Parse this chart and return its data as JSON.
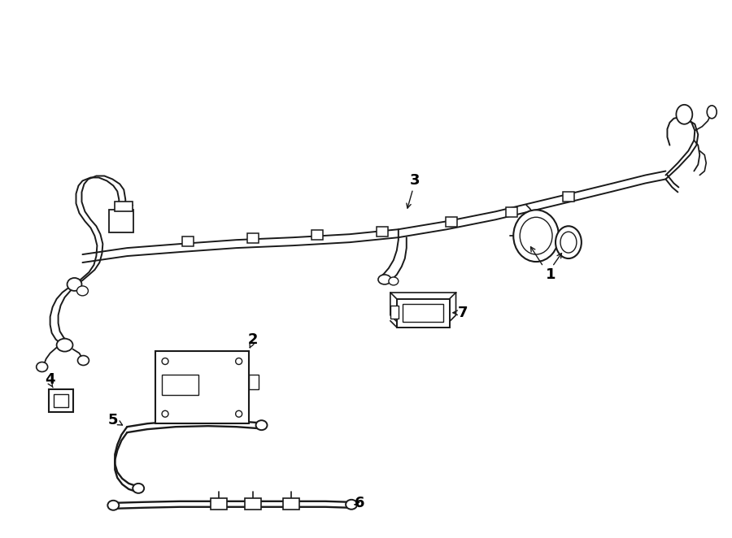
{
  "bg_color": "#ffffff",
  "line_color": "#1a1a1a",
  "text_color": "#000000",
  "figsize": [
    9.0,
    6.62
  ],
  "dpi": 100
}
